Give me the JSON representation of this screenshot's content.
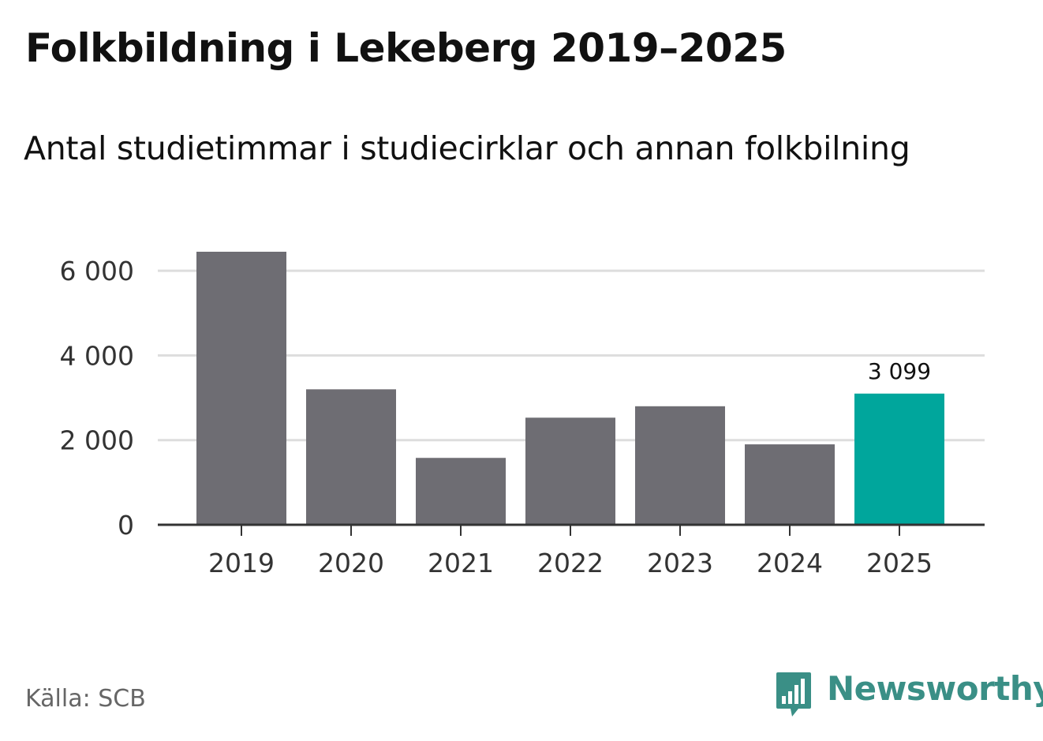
{
  "header": {
    "title": "Folkbildning i Lekeberg 2019–2025",
    "subtitle": "Antal studietimmar i studiecirklar och annan folkbilning"
  },
  "footer": {
    "source": "Källa: SCB",
    "brand": "Newsworthy",
    "brand_icon": "bar-chart-speech-bubble-icon"
  },
  "colors": {
    "bar_default": "#6e6d73",
    "bar_highlight": "#00a69c",
    "grid": "#dddddd",
    "axis": "#333333",
    "tick_text": "#333333",
    "brand": "#3a8f86"
  },
  "chart_data": {
    "type": "bar",
    "title": "Folkbildning i Lekeberg 2019–2025",
    "subtitle": "Antal studietimmar i studiecirklar och annan folkbilning",
    "categories": [
      "2019",
      "2020",
      "2021",
      "2022",
      "2023",
      "2024",
      "2025"
    ],
    "values": [
      6450,
      3200,
      1580,
      2530,
      2800,
      1900,
      3099
    ],
    "highlight_index": 6,
    "data_labels": [
      {
        "category": "2025",
        "text": "3 099"
      }
    ],
    "y_ticks": [
      0,
      2000,
      4000,
      6000
    ],
    "y_tick_labels": [
      "0",
      "2 000",
      "4 000",
      "6 000"
    ],
    "ylim": [
      0,
      6450
    ],
    "xlabel": "",
    "ylabel": "",
    "grid": true,
    "legend": "none"
  }
}
